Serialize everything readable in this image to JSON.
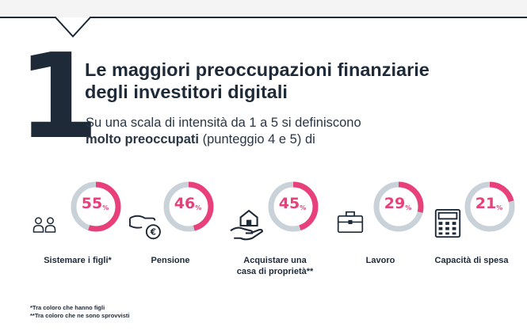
{
  "header": {
    "number": "1",
    "title_line1": "Le maggiori preoccupazioni finanziarie",
    "title_line2": "degli investitori digitali",
    "subtitle_line1": "Su una scala di intensità da 1 a 5 si definiscono",
    "subtitle_bold": "molto preoccupati",
    "subtitle_rest": " (punteggio 4 e 5) di"
  },
  "colors": {
    "accent": "#e8407a",
    "track": "#c9d1d9",
    "dark": "#1e2a38",
    "band": "#f4f4f4"
  },
  "chart_data": {
    "type": "donut",
    "unit": "%",
    "categories": [
      {
        "label_line1": "Sistemare i figli*",
        "label_line2": "",
        "value": 55,
        "icon": "people-icon"
      },
      {
        "label_line1": "Pensione",
        "label_line2": "",
        "value": 46,
        "icon": "hand-coin-icon"
      },
      {
        "label_line1": "Acquistare una",
        "label_line2": "casa di proprietà**",
        "value": 45,
        "icon": "hand-house-icon"
      },
      {
        "label_line1": "Lavoro",
        "label_line2": "",
        "value": 29,
        "icon": "briefcase-icon"
      },
      {
        "label_line1": "Capacità di spesa",
        "label_line2": "",
        "value": 21,
        "icon": "calculator-icon"
      }
    ]
  },
  "notes": {
    "note1": "*Tra coloro che hanno figli",
    "note2": "**Tra coloro che ne sono sprovvisti"
  }
}
